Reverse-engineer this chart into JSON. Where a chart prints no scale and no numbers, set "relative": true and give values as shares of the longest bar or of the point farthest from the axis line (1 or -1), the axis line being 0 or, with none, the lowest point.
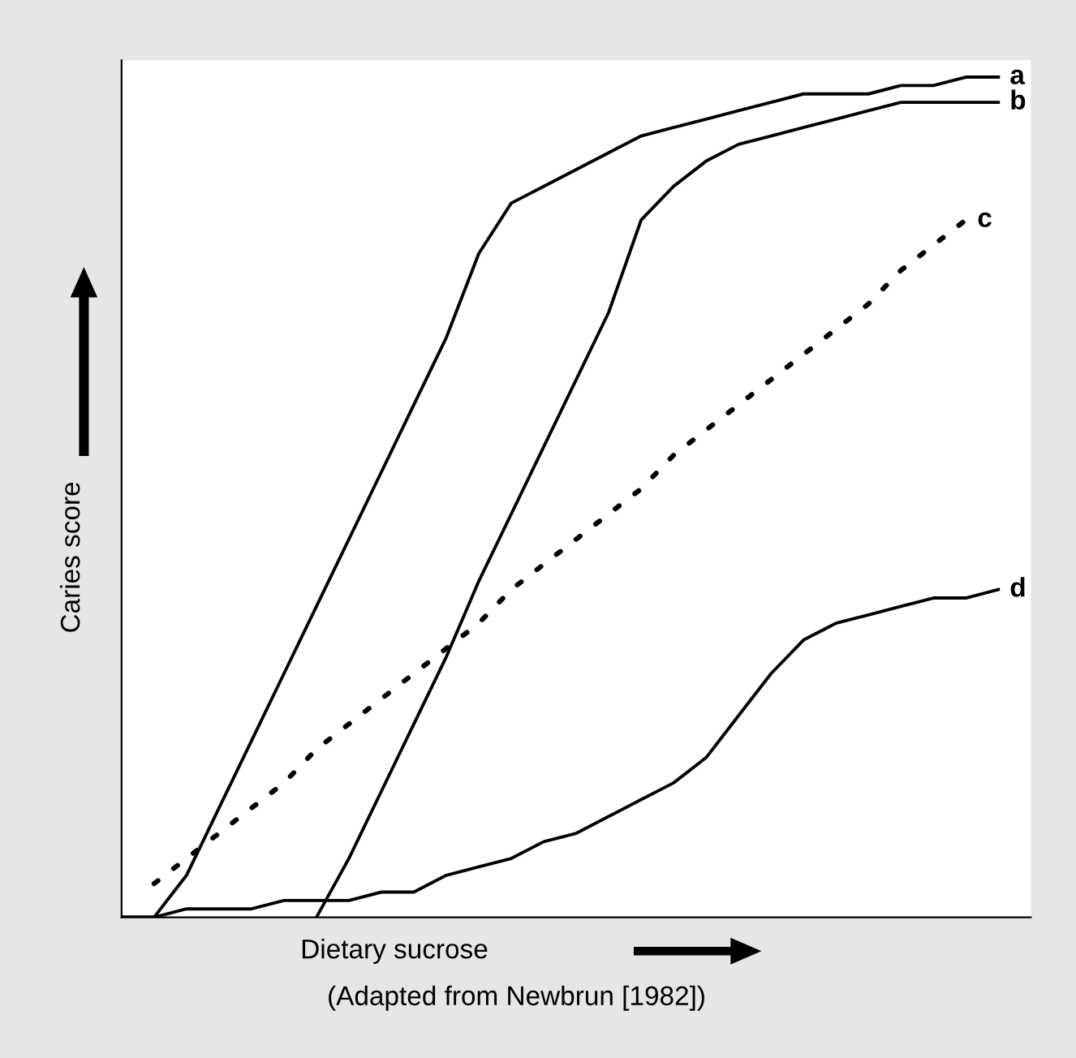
{
  "chart_data": {
    "type": "line",
    "relative": true,
    "xlabel": "Dietary sucrose",
    "ylabel": "Caries score",
    "annotations": [
      "(Adapted from Newbrun [1982])"
    ],
    "legend": false,
    "marker": "none",
    "categories": [
      null,
      null,
      null,
      null,
      null,
      null,
      null,
      null,
      null,
      null,
      null,
      null,
      null,
      null,
      null,
      null,
      null,
      null,
      null,
      null,
      null,
      null,
      null,
      null,
      null,
      null,
      null,
      null
    ],
    "series": [
      {
        "name": "a",
        "color": "#000000",
        "line_style": "solid",
        "values": [
          0,
          0.0,
          0.05,
          0.13,
          0.21,
          0.29,
          0.37,
          0.45,
          0.53,
          0.61,
          0.69,
          0.79,
          0.85,
          0.87,
          0.89,
          0.91,
          0.93,
          0.94,
          0.95,
          0.96,
          0.97,
          0.98,
          0.98,
          0.98,
          0.99,
          0.99,
          1.0,
          1.0
        ]
      },
      {
        "name": "b",
        "color": "#000000",
        "line_style": "solid",
        "values": [
          null,
          null,
          null,
          null,
          null,
          null,
          0.0,
          0.07,
          0.15,
          0.23,
          0.31,
          0.4,
          0.48,
          0.56,
          0.64,
          0.72,
          0.83,
          0.87,
          0.9,
          0.92,
          0.93,
          0.94,
          0.95,
          0.96,
          0.97,
          0.97,
          0.97,
          0.97
        ]
      },
      {
        "name": "c",
        "color": "#000000",
        "line_style": "dotted",
        "values": [
          null,
          0.04,
          0.07,
          0.1,
          0.13,
          0.16,
          0.2,
          0.23,
          0.26,
          0.29,
          0.32,
          0.35,
          0.39,
          0.42,
          0.45,
          0.48,
          0.51,
          0.55,
          0.58,
          0.61,
          0.64,
          0.67,
          0.7,
          0.73,
          0.77,
          0.8,
          0.83,
          null
        ]
      },
      {
        "name": "d",
        "color": "#000000",
        "line_style": "solid",
        "values": [
          0,
          0.0,
          0.01,
          0.01,
          0.01,
          0.02,
          0.02,
          0.02,
          0.03,
          0.03,
          0.05,
          0.06,
          0.07,
          0.09,
          0.1,
          0.12,
          0.14,
          0.16,
          0.19,
          0.24,
          0.29,
          0.33,
          0.35,
          0.36,
          0.37,
          0.38,
          0.38,
          0.39
        ]
      }
    ]
  }
}
